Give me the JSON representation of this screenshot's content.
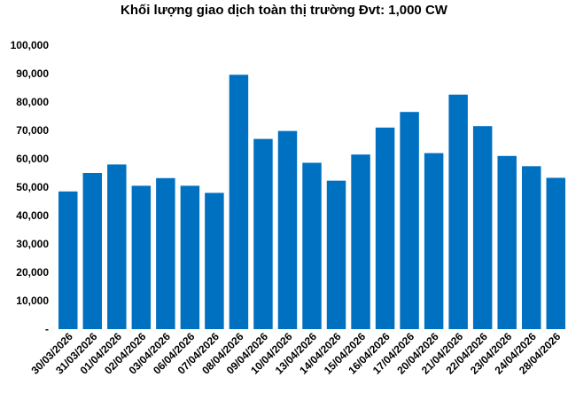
{
  "chart_data": {
    "type": "bar",
    "title": "Khối lượng giao dịch toàn thị trường Đvt: 1,000 CW",
    "xlabel": "",
    "ylabel": "",
    "categories": [
      "30/03/2026",
      "31/03/2026",
      "01/04/2026",
      "02/04/2026",
      "03/04/2026",
      "06/04/2026",
      "07/04/2026",
      "08/04/2026",
      "09/04/2026",
      "10/04/2026",
      "13/04/2026",
      "14/04/2026",
      "15/04/2026",
      "16/04/2026",
      "17/04/2026",
      "20/04/2026",
      "21/04/2026",
      "22/04/2026",
      "23/04/2026",
      "24/04/2026",
      "28/04/2026"
    ],
    "values": [
      48500,
      55000,
      58000,
      50500,
      53200,
      50500,
      48000,
      89600,
      67000,
      69800,
      58600,
      52300,
      61500,
      71000,
      76500,
      62000,
      82600,
      71500,
      61000,
      57400,
      53300
    ],
    "ylim": [
      0,
      100000
    ],
    "yticks": [
      "-",
      "10,000",
      "20,000",
      "30,000",
      "40,000",
      "50,000",
      "60,000",
      "70,000",
      "80,000",
      "90,000",
      "100,000"
    ],
    "bar_color": "#0070C0",
    "grid": false,
    "legend": "none"
  }
}
